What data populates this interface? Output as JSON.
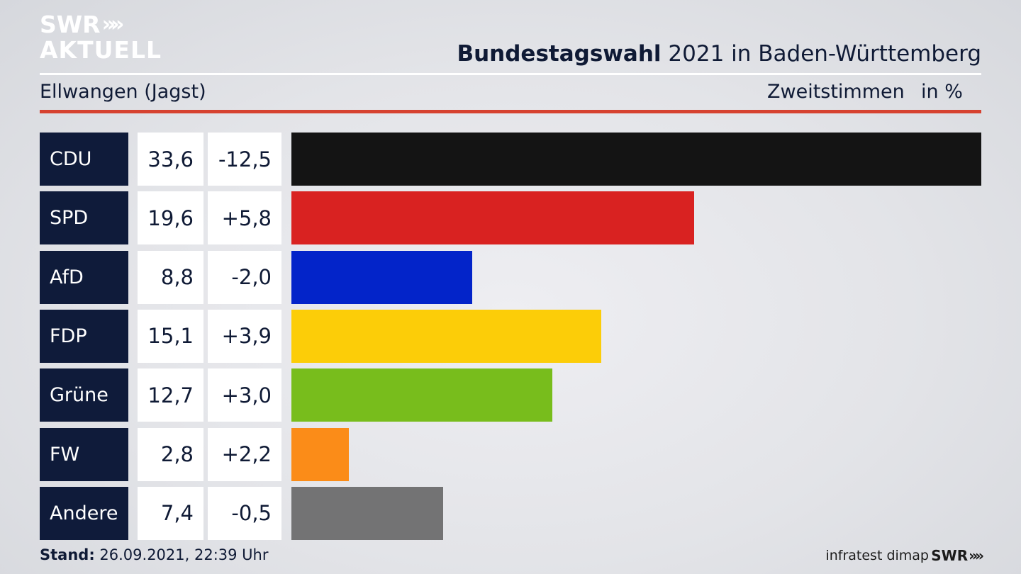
{
  "logo": {
    "line1": "SWR",
    "arrows": "»»",
    "line2": "AKTUELL"
  },
  "header": {
    "title_bold": "Bundestagswahl",
    "title_rest": " 2021 in Baden-Württemberg",
    "subtitle": "Ellwangen (Jagst)",
    "metric": "Zweitstimmen",
    "unit": "in %"
  },
  "footer": {
    "stand_label": "Stand:",
    "stand_value": " 26.09.2021, 22:39 Uhr",
    "source": "infratest dimap",
    "swr": "SWR",
    "swr_arrows": "»»"
  },
  "colors": {
    "accent_red": "#d64230",
    "party_label_bg": "#0f1b3a"
  },
  "chart_data": {
    "type": "bar",
    "orientation": "horizontal",
    "categories": [
      "CDU",
      "SPD",
      "AfD",
      "FDP",
      "Grüne",
      "FW",
      "Andere"
    ],
    "values": [
      33.6,
      19.6,
      8.8,
      15.1,
      12.7,
      2.8,
      7.4
    ],
    "value_labels": [
      "33,6",
      "19,6",
      "8,8",
      "15,1",
      "12,7",
      "2,8",
      "7,4"
    ],
    "diff_values": [
      -12.5,
      5.8,
      -2.0,
      3.9,
      3.0,
      2.2,
      -0.5
    ],
    "diff_labels": [
      "-12,5",
      "+5,8",
      "-2,0",
      "+3,9",
      "+3,0",
      "+2,2",
      "-0,5"
    ],
    "bar_colors": [
      "#141414",
      "#d92221",
      "#0324c9",
      "#fccd08",
      "#78bd1c",
      "#fb8c18",
      "#737374"
    ],
    "xlim": [
      0,
      33.6
    ],
    "grid": false
  }
}
